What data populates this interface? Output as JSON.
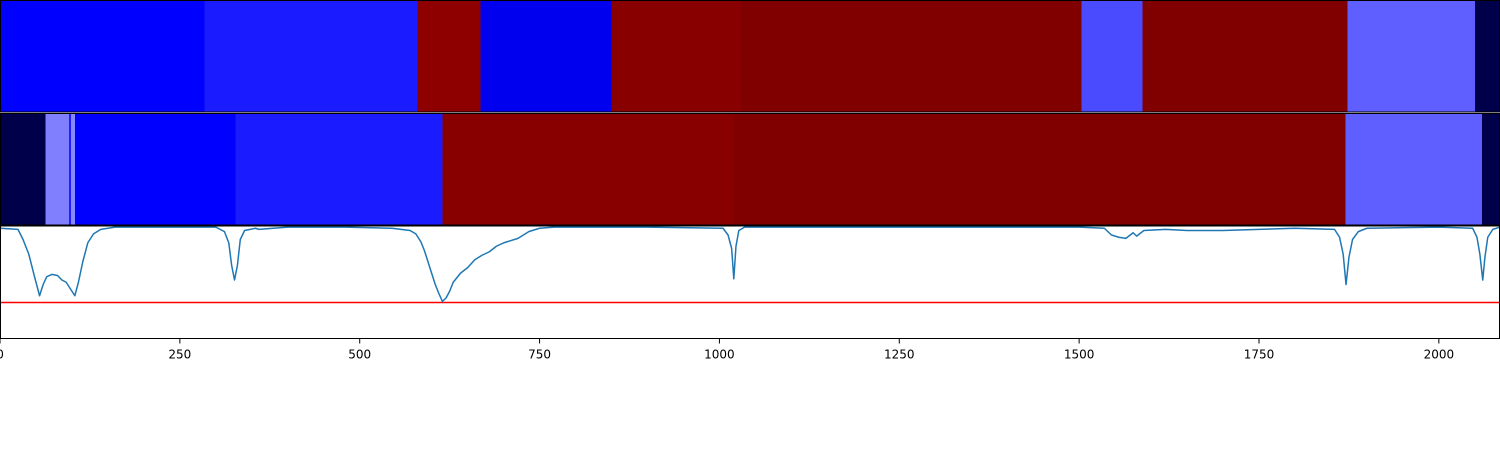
{
  "chart_data": {
    "type": "heatmap",
    "x_range": [
      0,
      2085
    ],
    "x_ticks": [
      {
        "value": 0,
        "label": "0"
      },
      {
        "value": 250,
        "label": "250"
      },
      {
        "value": 500,
        "label": "500"
      },
      {
        "value": 750,
        "label": "750"
      },
      {
        "value": 1000,
        "label": "1000"
      },
      {
        "value": 1250,
        "label": "1250"
      },
      {
        "value": 1500,
        "label": "1500"
      },
      {
        "value": 1750,
        "label": "1750"
      },
      {
        "value": 2000,
        "label": "2000"
      }
    ],
    "tracks": [
      {
        "segments": [
          {
            "start": 0,
            "end": 284,
            "color": "#0000ff"
          },
          {
            "start": 284,
            "end": 580,
            "color": "#1b1bff"
          },
          {
            "start": 580,
            "end": 668,
            "color": "#8e0000"
          },
          {
            "start": 668,
            "end": 850,
            "color": "#0000ef"
          },
          {
            "start": 850,
            "end": 1030,
            "color": "#880000"
          },
          {
            "start": 1030,
            "end": 1503,
            "color": "#800000"
          },
          {
            "start": 1503,
            "end": 1588,
            "color": "#4a4aff"
          },
          {
            "start": 1588,
            "end": 1873,
            "color": "#800000"
          },
          {
            "start": 1873,
            "end": 2050,
            "color": "#5f5fff"
          },
          {
            "start": 2050,
            "end": 2085,
            "color": "#00004a"
          }
        ]
      },
      {
        "segments": [
          {
            "start": 0,
            "end": 63,
            "color": "#00004a"
          },
          {
            "start": 63,
            "end": 96,
            "color": "#8080ff"
          },
          {
            "start": 96,
            "end": 99,
            "color": "#1e1eff"
          },
          {
            "start": 99,
            "end": 104,
            "color": "#8888ff"
          },
          {
            "start": 104,
            "end": 327,
            "color": "#0000ff"
          },
          {
            "start": 327,
            "end": 615,
            "color": "#1b1bff"
          },
          {
            "start": 615,
            "end": 1020,
            "color": "#880000"
          },
          {
            "start": 1020,
            "end": 1870,
            "color": "#800000"
          },
          {
            "start": 1870,
            "end": 2060,
            "color": "#5f5fff"
          },
          {
            "start": 2060,
            "end": 2085,
            "color": "#00004a"
          }
        ]
      }
    ],
    "line_panel": {
      "y_range": [
        0,
        1
      ],
      "threshold": 0.32,
      "threshold_color": "#ff0000",
      "line_color": "#1f77b4",
      "points": [
        [
          0,
          0.98
        ],
        [
          25,
          0.97
        ],
        [
          32,
          0.88
        ],
        [
          40,
          0.75
        ],
        [
          48,
          0.55
        ],
        [
          55,
          0.38
        ],
        [
          60,
          0.48
        ],
        [
          65,
          0.55
        ],
        [
          72,
          0.57
        ],
        [
          80,
          0.56
        ],
        [
          86,
          0.52
        ],
        [
          92,
          0.5
        ],
        [
          97,
          0.45
        ],
        [
          104,
          0.38
        ],
        [
          109,
          0.5
        ],
        [
          115,
          0.68
        ],
        [
          122,
          0.85
        ],
        [
          130,
          0.93
        ],
        [
          140,
          0.97
        ],
        [
          160,
          0.99
        ],
        [
          300,
          0.99
        ],
        [
          312,
          0.95
        ],
        [
          318,
          0.85
        ],
        [
          322,
          0.65
        ],
        [
          326,
          0.52
        ],
        [
          330,
          0.65
        ],
        [
          334,
          0.88
        ],
        [
          340,
          0.96
        ],
        [
          355,
          0.98
        ],
        [
          360,
          0.97
        ],
        [
          400,
          0.99
        ],
        [
          480,
          0.99
        ],
        [
          545,
          0.98
        ],
        [
          570,
          0.96
        ],
        [
          578,
          0.93
        ],
        [
          585,
          0.86
        ],
        [
          590,
          0.78
        ],
        [
          595,
          0.68
        ],
        [
          600,
          0.58
        ],
        [
          605,
          0.48
        ],
        [
          610,
          0.4
        ],
        [
          615,
          0.33
        ],
        [
          620,
          0.36
        ],
        [
          625,
          0.42
        ],
        [
          630,
          0.5
        ],
        [
          640,
          0.58
        ],
        [
          650,
          0.63
        ],
        [
          660,
          0.7
        ],
        [
          670,
          0.74
        ],
        [
          680,
          0.77
        ],
        [
          690,
          0.82
        ],
        [
          700,
          0.85
        ],
        [
          720,
          0.89
        ],
        [
          735,
          0.95
        ],
        [
          750,
          0.98
        ],
        [
          770,
          0.99
        ],
        [
          900,
          0.99
        ],
        [
          1005,
          0.98
        ],
        [
          1012,
          0.92
        ],
        [
          1017,
          0.8
        ],
        [
          1020,
          0.53
        ],
        [
          1023,
          0.82
        ],
        [
          1027,
          0.96
        ],
        [
          1035,
          0.99
        ],
        [
          1200,
          0.99
        ],
        [
          1500,
          0.99
        ],
        [
          1535,
          0.98
        ],
        [
          1545,
          0.92
        ],
        [
          1555,
          0.9
        ],
        [
          1565,
          0.89
        ],
        [
          1575,
          0.94
        ],
        [
          1580,
          0.91
        ],
        [
          1590,
          0.96
        ],
        [
          1620,
          0.97
        ],
        [
          1650,
          0.96
        ],
        [
          1700,
          0.96
        ],
        [
          1750,
          0.97
        ],
        [
          1800,
          0.98
        ],
        [
          1855,
          0.97
        ],
        [
          1862,
          0.9
        ],
        [
          1867,
          0.75
        ],
        [
          1871,
          0.48
        ],
        [
          1875,
          0.72
        ],
        [
          1880,
          0.88
        ],
        [
          1888,
          0.95
        ],
        [
          1900,
          0.98
        ],
        [
          2000,
          0.99
        ],
        [
          2047,
          0.98
        ],
        [
          2053,
          0.9
        ],
        [
          2057,
          0.75
        ],
        [
          2061,
          0.52
        ],
        [
          2064,
          0.72
        ],
        [
          2068,
          0.9
        ],
        [
          2075,
          0.97
        ],
        [
          2085,
          0.99
        ]
      ]
    }
  }
}
